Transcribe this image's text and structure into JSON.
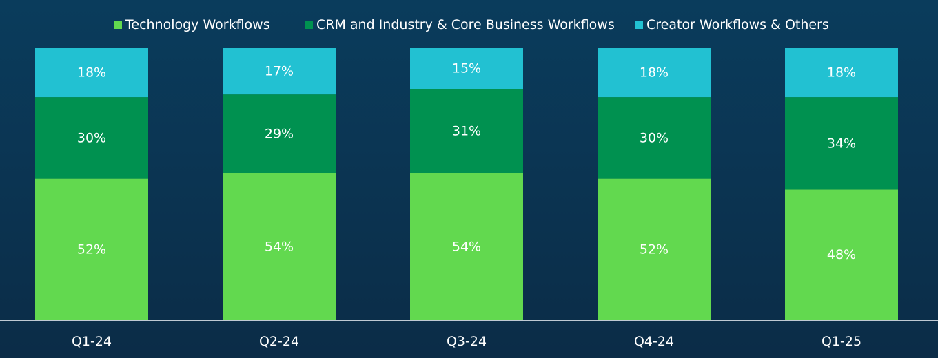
{
  "chart_data": {
    "type": "bar",
    "stacked": true,
    "categories": [
      "Q1-24",
      "Q2-24",
      "Q3-24",
      "Q4-24",
      "Q1-25"
    ],
    "series": [
      {
        "name": "Technology Workflows",
        "color": "#62d94f",
        "values": [
          52,
          54,
          54,
          52,
          48
        ],
        "labels": [
          "52%",
          "54%",
          "54%",
          "52%",
          "48%"
        ]
      },
      {
        "name": "CRM and Industry & Core Business Workflows",
        "color": "#009150",
        "values": [
          30,
          29,
          31,
          30,
          34
        ],
        "labels": [
          "30%",
          "29%",
          "31%",
          "30%",
          "34%"
        ]
      },
      {
        "name": "Creator Workflows & Others",
        "color": "#22c1d2",
        "values": [
          18,
          17,
          15,
          18,
          18
        ],
        "labels": [
          "18%",
          "17%",
          "15%",
          "18%",
          "18%"
        ]
      }
    ],
    "title": "",
    "xlabel": "",
    "ylabel": "",
    "ylim": [
      0,
      100
    ],
    "legend": "top"
  }
}
